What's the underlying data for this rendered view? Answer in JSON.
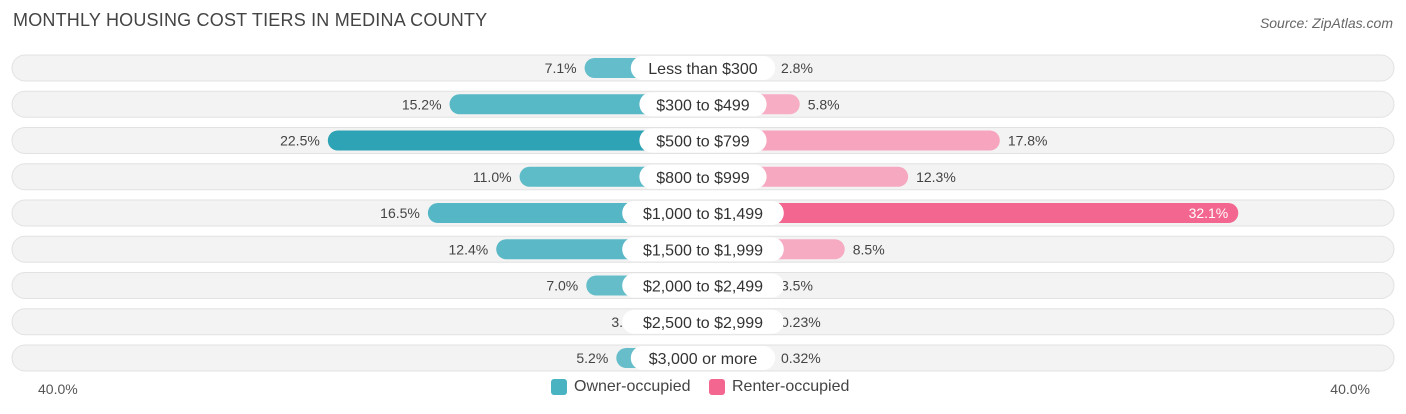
{
  "title": "MONTHLY HOUSING COST TIERS IN MEDINA COUNTY",
  "source": "Source: ZipAtlas.com",
  "colors": {
    "owner": "#4ab3c2",
    "owner_strong": "#2ea3b5",
    "renter": "#f79bb8",
    "renter_strong": "#f2668f",
    "track": "#f1f1f1"
  },
  "chart_data": {
    "type": "bar",
    "orientation": "horizontal-diverging",
    "categories": [
      "Less than $300",
      "$300 to $499",
      "$500 to $799",
      "$800 to $999",
      "$1,000 to $1,499",
      "$1,500 to $1,999",
      "$2,000 to $2,499",
      "$2,500 to $2,999",
      "$3,000 or more"
    ],
    "series": [
      {
        "name": "Owner-occupied",
        "values": [
          7.1,
          15.2,
          22.5,
          11.0,
          16.5,
          12.4,
          7.0,
          3.1,
          5.2
        ],
        "labels": [
          "7.1%",
          "15.2%",
          "22.5%",
          "11.0%",
          "16.5%",
          "12.4%",
          "7.0%",
          "3.1%",
          "5.2%"
        ]
      },
      {
        "name": "Renter-occupied",
        "values": [
          2.8,
          5.8,
          17.8,
          12.3,
          32.1,
          8.5,
          3.5,
          0.23,
          0.32
        ],
        "labels": [
          "2.8%",
          "5.8%",
          "17.8%",
          "12.3%",
          "32.1%",
          "8.5%",
          "3.5%",
          "0.23%",
          "0.32%"
        ]
      }
    ],
    "xlim": [
      -40,
      40
    ],
    "axis_labels": {
      "left": "40.0%",
      "right": "40.0%"
    },
    "legend_position": "bottom-center"
  }
}
